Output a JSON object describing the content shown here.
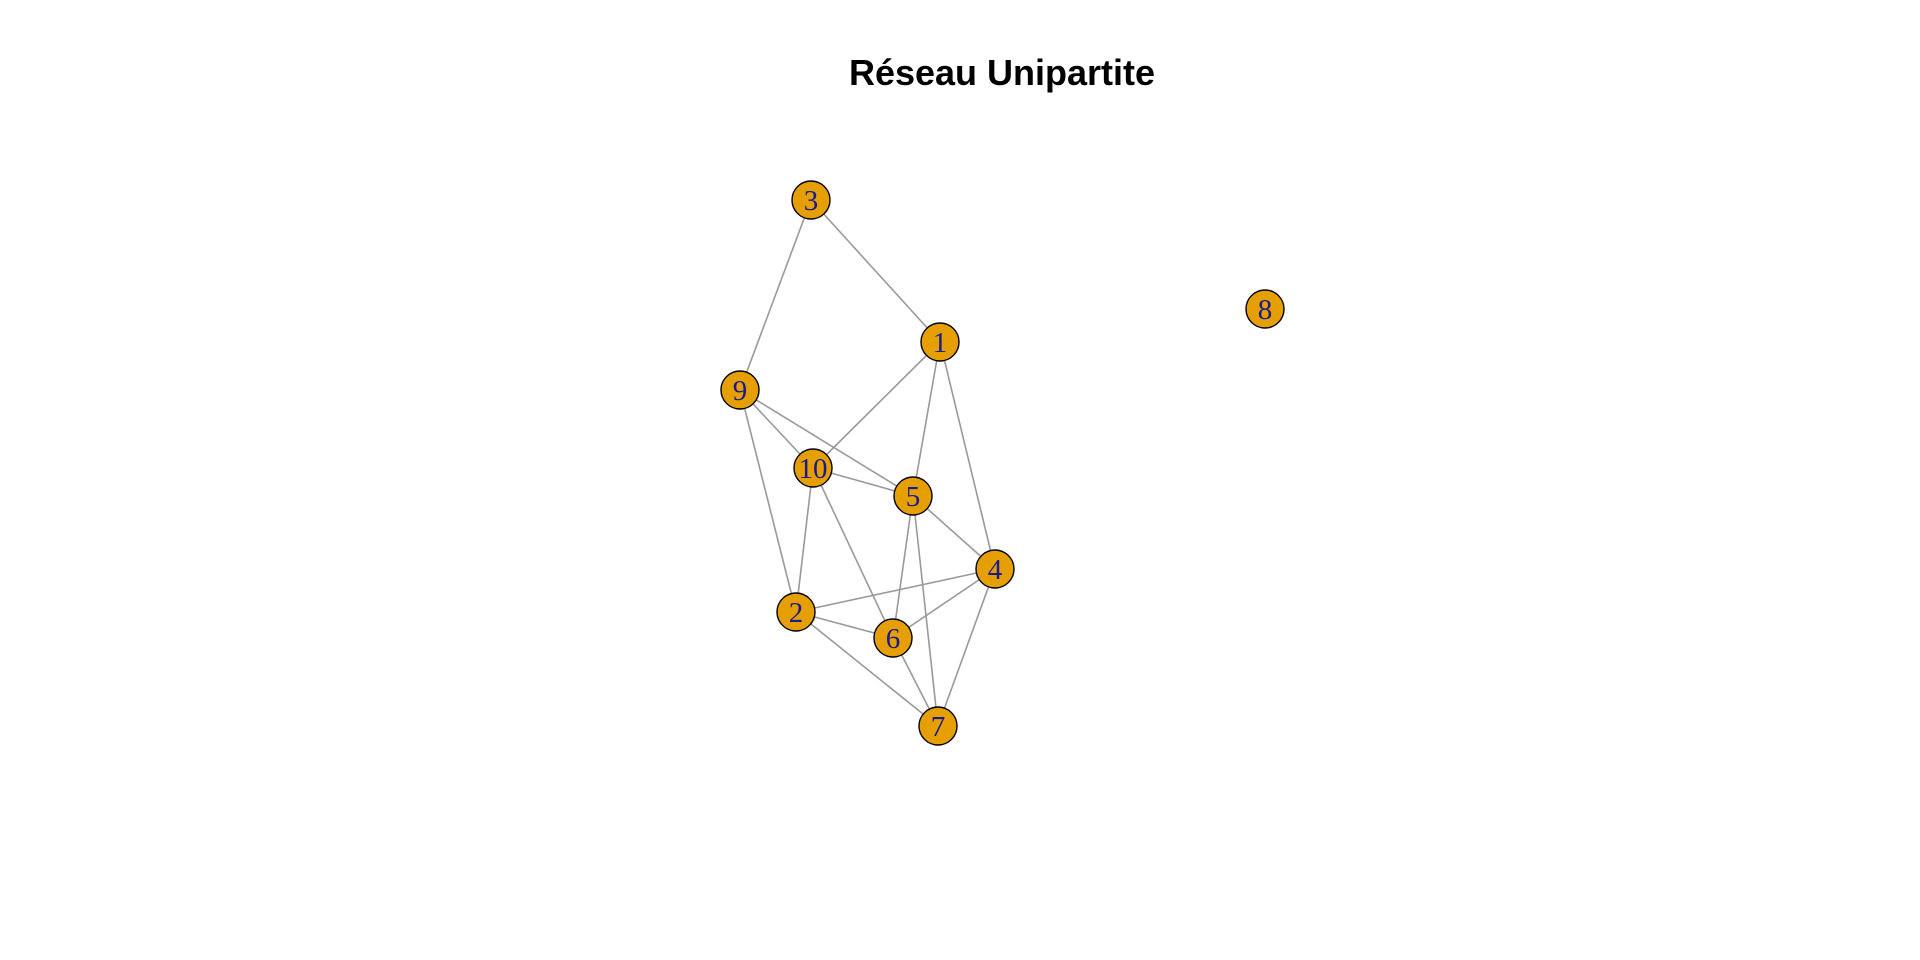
{
  "title": "Réseau Unipartite",
  "colors": {
    "background": "#ffffff",
    "node_fill": "#E69F00",
    "node_stroke": "#000000",
    "label": "#1a1a8c",
    "edge": "#999999",
    "title": "#000000"
  },
  "graph": {
    "nodes": [
      {
        "id": "1",
        "label": "1"
      },
      {
        "id": "2",
        "label": "2"
      },
      {
        "id": "3",
        "label": "3"
      },
      {
        "id": "4",
        "label": "4"
      },
      {
        "id": "5",
        "label": "5"
      },
      {
        "id": "6",
        "label": "6"
      },
      {
        "id": "7",
        "label": "7"
      },
      {
        "id": "8",
        "label": "8"
      },
      {
        "id": "9",
        "label": "9"
      },
      {
        "id": "10",
        "label": "10"
      }
    ],
    "edges": [
      [
        "3",
        "1"
      ],
      [
        "3",
        "9"
      ],
      [
        "1",
        "10"
      ],
      [
        "1",
        "5"
      ],
      [
        "1",
        "4"
      ],
      [
        "9",
        "10"
      ],
      [
        "9",
        "5"
      ],
      [
        "9",
        "2"
      ],
      [
        "10",
        "5"
      ],
      [
        "10",
        "2"
      ],
      [
        "10",
        "6"
      ],
      [
        "5",
        "4"
      ],
      [
        "5",
        "6"
      ],
      [
        "5",
        "7"
      ],
      [
        "4",
        "2"
      ],
      [
        "4",
        "6"
      ],
      [
        "4",
        "7"
      ],
      [
        "2",
        "6"
      ],
      [
        "2",
        "7"
      ],
      [
        "6",
        "7"
      ]
    ]
  }
}
